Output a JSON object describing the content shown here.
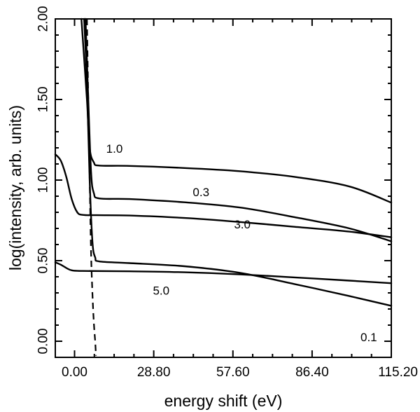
{
  "chart_data": {
    "type": "line",
    "title": "",
    "xlabel": "energy shift (eV)",
    "ylabel": "log(intensity, arb. units)",
    "xlim": [
      -7,
      115.2
    ],
    "ylim": [
      -0.1,
      2.0
    ],
    "x_ticks": [
      "0.00",
      "28.80",
      "57.60",
      "86.40",
      "115.20"
    ],
    "y_ticks": [
      "0.00",
      "0.50",
      "1.00",
      "1.50",
      "2.00"
    ],
    "series": [
      {
        "name": "1.0",
        "style": "solid",
        "points": [
          [
            2.5,
            2.0
          ],
          [
            4.5,
            1.5
          ],
          [
            5.5,
            1.2
          ],
          [
            7.0,
            1.11
          ],
          [
            9.0,
            1.09
          ],
          [
            20,
            1.088
          ],
          [
            40,
            1.075
          ],
          [
            60,
            1.055
          ],
          [
            80,
            1.02
          ],
          [
            100,
            0.96
          ],
          [
            115.2,
            0.86
          ]
        ]
      },
      {
        "name": "0.3",
        "style": "solid",
        "points": [
          [
            4.0,
            2.0
          ],
          [
            5.0,
            1.5
          ],
          [
            6.0,
            1.05
          ],
          [
            7.0,
            0.92
          ],
          [
            9.0,
            0.886
          ],
          [
            20,
            0.882
          ],
          [
            40,
            0.862
          ],
          [
            60,
            0.83
          ],
          [
            80,
            0.77
          ],
          [
            100,
            0.7
          ],
          [
            115.2,
            0.62
          ]
        ]
      },
      {
        "name": "3.0",
        "style": "solid",
        "points": [
          [
            -7,
            1.16
          ],
          [
            -5,
            1.12
          ],
          [
            -3,
            1.02
          ],
          [
            -1,
            0.88
          ],
          [
            1,
            0.8
          ],
          [
            3,
            0.784
          ],
          [
            8,
            0.782
          ],
          [
            20,
            0.78
          ],
          [
            40,
            0.765
          ],
          [
            60,
            0.74
          ],
          [
            80,
            0.71
          ],
          [
            100,
            0.68
          ],
          [
            115.2,
            0.645
          ]
        ]
      },
      {
        "name": "0.1",
        "style": "solid",
        "points": [
          [
            3.5,
            2.0
          ],
          [
            4.5,
            1.6
          ],
          [
            5.5,
            1.0
          ],
          [
            6.5,
            0.62
          ],
          [
            7.5,
            0.52
          ],
          [
            9.0,
            0.495
          ],
          [
            20,
            0.485
          ],
          [
            40,
            0.465
          ],
          [
            60,
            0.425
          ],
          [
            80,
            0.355
          ],
          [
            100,
            0.28
          ],
          [
            115.2,
            0.22
          ]
        ]
      },
      {
        "name": "5.0",
        "style": "solid",
        "points": [
          [
            -7,
            0.49
          ],
          [
            -5,
            0.475
          ],
          [
            -3,
            0.455
          ],
          [
            -1,
            0.44
          ],
          [
            3,
            0.436
          ],
          [
            20,
            0.434
          ],
          [
            40,
            0.428
          ],
          [
            60,
            0.415
          ],
          [
            80,
            0.396
          ],
          [
            100,
            0.376
          ],
          [
            115.2,
            0.36
          ]
        ]
      },
      {
        "name": "",
        "style": "dashed",
        "points": [
          [
            4.5,
            2.0
          ],
          [
            5.0,
            1.5
          ],
          [
            5.5,
            1.0
          ],
          [
            6.0,
            0.55
          ],
          [
            6.5,
            0.3
          ],
          [
            7.0,
            0.12
          ],
          [
            7.5,
            0.0
          ],
          [
            7.8,
            -0.09
          ]
        ]
      }
    ],
    "annotations": [
      {
        "text": "1.0",
        "x": 11.5,
        "y": 1.17
      },
      {
        "text": "0.3",
        "x": 43,
        "y": 0.9
      },
      {
        "text": "3.0",
        "x": 58,
        "y": 0.7
      },
      {
        "text": "5.0",
        "x": 28.5,
        "y": 0.29
      },
      {
        "text": "0.1",
        "x": 104,
        "y": 0.0
      }
    ]
  }
}
